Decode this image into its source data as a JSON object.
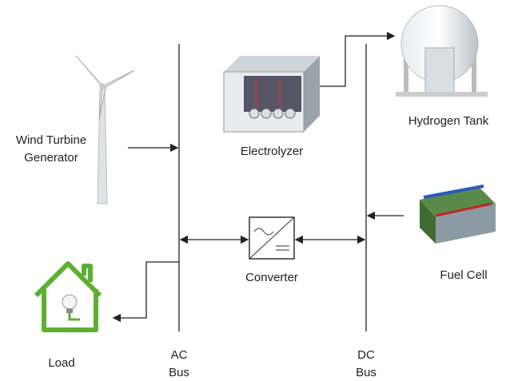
{
  "nodes": [
    {
      "label": [
        "Wind Turbine",
        "Generator"
      ]
    },
    {
      "label": [
        "Electrolyzer"
      ]
    },
    {
      "label": [
        "Hydrogen Tank"
      ]
    },
    {
      "label": [
        "Fuel Cell"
      ]
    },
    {
      "label": [
        "Converter"
      ]
    },
    {
      "label": [
        "Load"
      ]
    },
    {
      "label": [
        "AC",
        "Bus"
      ]
    },
    {
      "label": [
        "DC",
        "Bus"
      ]
    }
  ]
}
